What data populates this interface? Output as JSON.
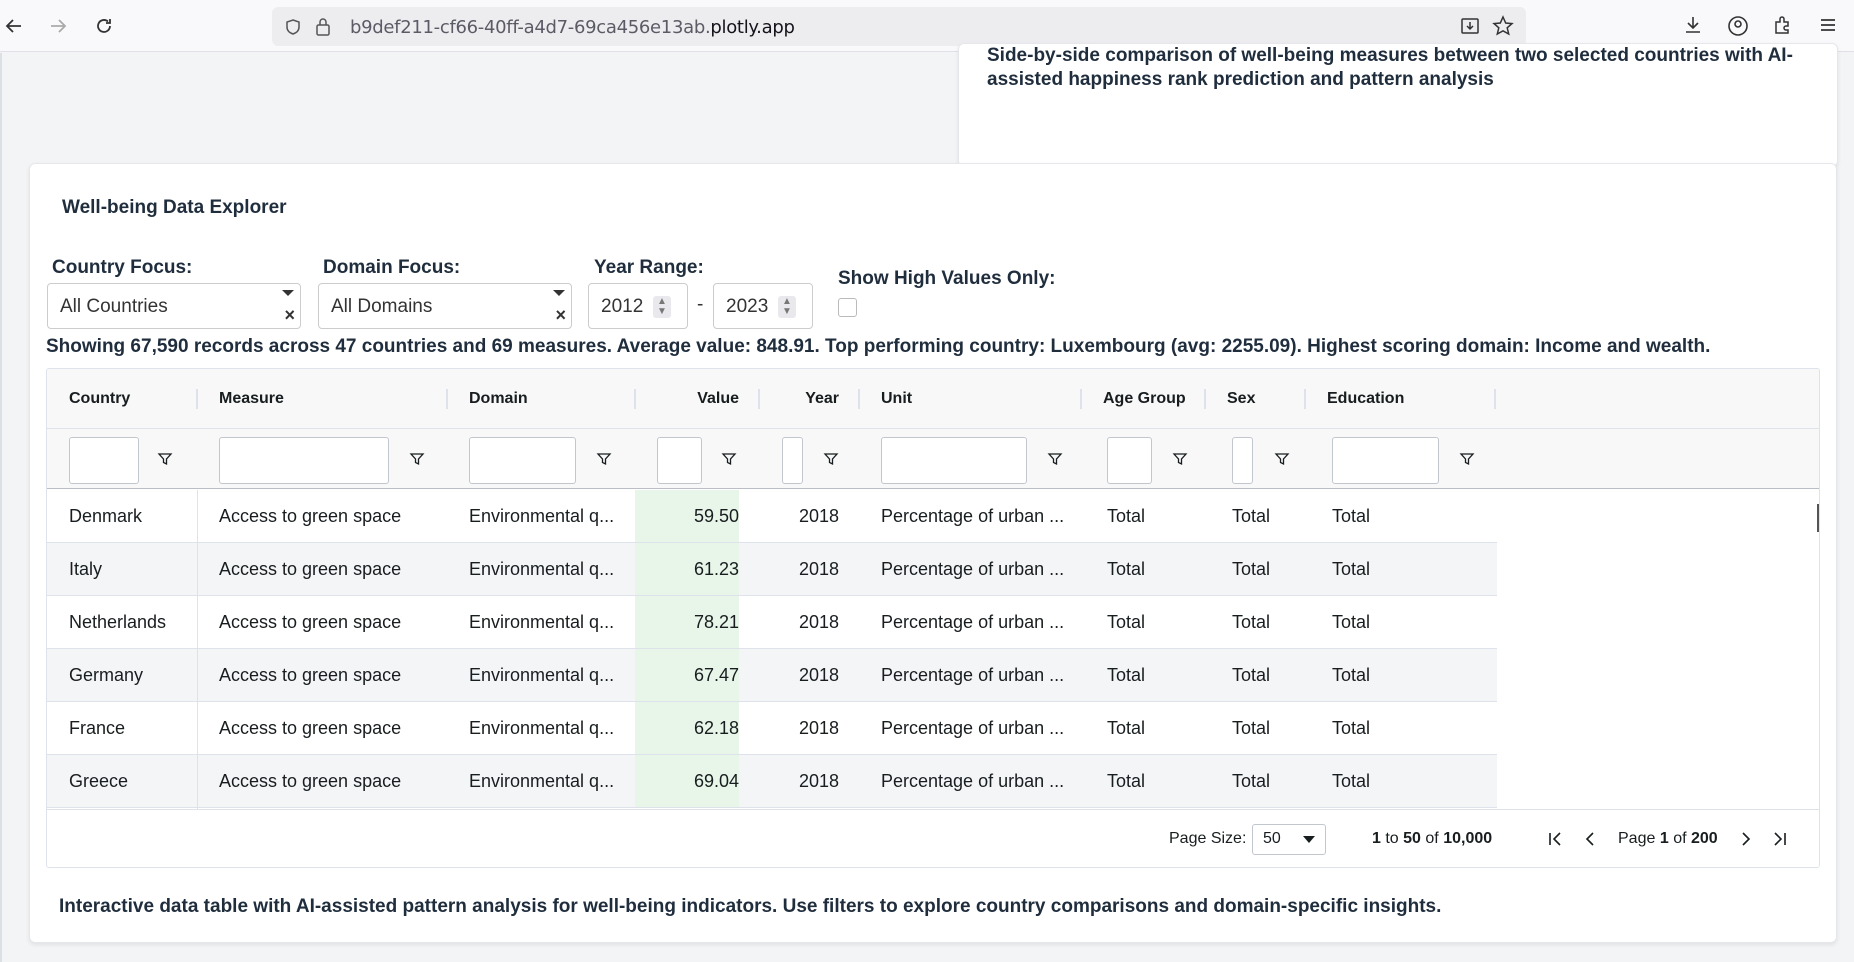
{
  "browser": {
    "url_prefix": "b9def211-cf66-40ff-a4d7-69ca456e13ab.",
    "url_domain": "plotly.app"
  },
  "top_card": {
    "text": "Side-by-side comparison of well-being measures between two selected countries with AI-assisted happiness rank prediction and pattern analysis"
  },
  "explorer": {
    "title": "Well-being Data Explorer",
    "country_label": "Country Focus:",
    "country_value": "All Countries",
    "domain_label": "Domain Focus:",
    "domain_value": "All Domains",
    "year_label": "Year Range:",
    "year_from": "2012",
    "year_to": "2023",
    "year_sep": "-",
    "high_label": "Show High Values Only:",
    "summary": "Showing 67,590 records across 47 countries and 69 measures. Average value: 848.91. Top performing country: Luxembourg (avg: 2255.09). Highest scoring domain: Income and wealth.",
    "footnote": "Interactive data table with AI-assisted pattern analysis for well-being indicators. Use filters to explore country comparisons and domain-specific insights."
  },
  "grid": {
    "columns": [
      "Country",
      "Measure",
      "Domain",
      "Value",
      "Year",
      "Unit",
      "Age Group",
      "Sex",
      "Education"
    ],
    "rows": [
      [
        "Denmark",
        "Access to green space",
        "Environmental q...",
        "59.50",
        "2018",
        "Percentage of urban ...",
        "Total",
        "Total",
        "Total"
      ],
      [
        "Italy",
        "Access to green space",
        "Environmental q...",
        "61.23",
        "2018",
        "Percentage of urban ...",
        "Total",
        "Total",
        "Total"
      ],
      [
        "Netherlands",
        "Access to green space",
        "Environmental q...",
        "78.21",
        "2018",
        "Percentage of urban ...",
        "Total",
        "Total",
        "Total"
      ],
      [
        "Germany",
        "Access to green space",
        "Environmental q...",
        "67.47",
        "2018",
        "Percentage of urban ...",
        "Total",
        "Total",
        "Total"
      ],
      [
        "France",
        "Access to green space",
        "Environmental q...",
        "62.18",
        "2018",
        "Percentage of urban ...",
        "Total",
        "Total",
        "Total"
      ],
      [
        "Greece",
        "Access to green space",
        "Environmental q...",
        "69.04",
        "2018",
        "Percentage of urban ...",
        "Total",
        "Total",
        "Total"
      ]
    ]
  },
  "pager": {
    "page_size_label": "Page Size:",
    "page_size": "50",
    "range_from": "1",
    "to_word": "to",
    "range_to": "50",
    "of_word": "of",
    "total": "10,000",
    "page_word": "Page",
    "page": "1",
    "page_of": "of",
    "pages": "200"
  },
  "colors": {
    "value_highlight": "#e8f5e9",
    "accent": "#1f2d3d"
  }
}
